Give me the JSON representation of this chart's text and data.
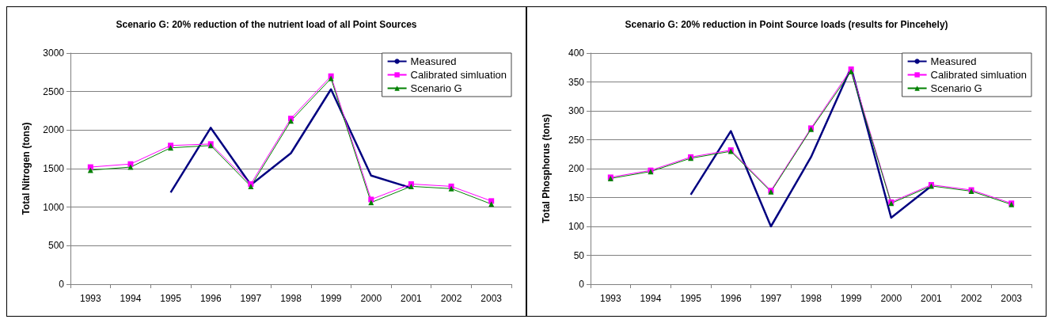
{
  "chart_data": [
    {
      "type": "line",
      "title": "Scenario G: 20% reduction of the nutrient load of all Point Sources",
      "ylabel": "Total Nitrogen (tons)",
      "categories": [
        "1993",
        "1994",
        "1995",
        "1996",
        "1997",
        "1998",
        "1999",
        "2000",
        "2001",
        "2002",
        "2003"
      ],
      "ylim": [
        0,
        3000
      ],
      "yticks": [
        0,
        500,
        1000,
        1500,
        2000,
        2500,
        3000
      ],
      "grid": "y",
      "legend": "top right",
      "series": [
        {
          "name": "Measured",
          "color": "#000080",
          "marker": "none",
          "values": [
            null,
            null,
            1190,
            2030,
            1290,
            1700,
            2530,
            1410,
            1250,
            null,
            null
          ]
        },
        {
          "name": "Calibrated simluation",
          "color": "#ff00ff",
          "marker": "square",
          "values": [
            1520,
            1560,
            1800,
            1820,
            1300,
            2150,
            2700,
            1100,
            1300,
            1270,
            1080
          ]
        },
        {
          "name": "Scenario G",
          "color": "#008000",
          "marker": "triangle",
          "values": [
            1480,
            1520,
            1770,
            1800,
            1270,
            2120,
            2670,
            1060,
            1270,
            1240,
            1040
          ]
        }
      ]
    },
    {
      "type": "line",
      "title": "Scenario G: 20% reduction in Point Source loads (results for Pincehely)",
      "ylabel": "Total Phosphorus (tons)",
      "categories": [
        "1993",
        "1994",
        "1995",
        "1996",
        "1997",
        "1998",
        "1999",
        "2000",
        "2001",
        "2002",
        "2003"
      ],
      "ylim": [
        0,
        400
      ],
      "yticks": [
        0,
        50,
        100,
        150,
        200,
        250,
        300,
        350,
        400
      ],
      "grid": "y",
      "legend": "top right",
      "series": [
        {
          "name": "Measured",
          "color": "#000080",
          "marker": "none",
          "values": [
            null,
            null,
            155,
            265,
            100,
            220,
            375,
            115,
            170,
            null,
            null
          ]
        },
        {
          "name": "Calibrated simluation",
          "color": "#ff00ff",
          "marker": "square",
          "values": [
            185,
            197,
            220,
            232,
            162,
            270,
            372,
            142,
            172,
            163,
            140
          ]
        },
        {
          "name": "Scenario G",
          "color": "#008000",
          "marker": "triangle",
          "values": [
            183,
            195,
            218,
            230,
            160,
            268,
            368,
            140,
            170,
            161,
            138
          ]
        }
      ]
    }
  ]
}
